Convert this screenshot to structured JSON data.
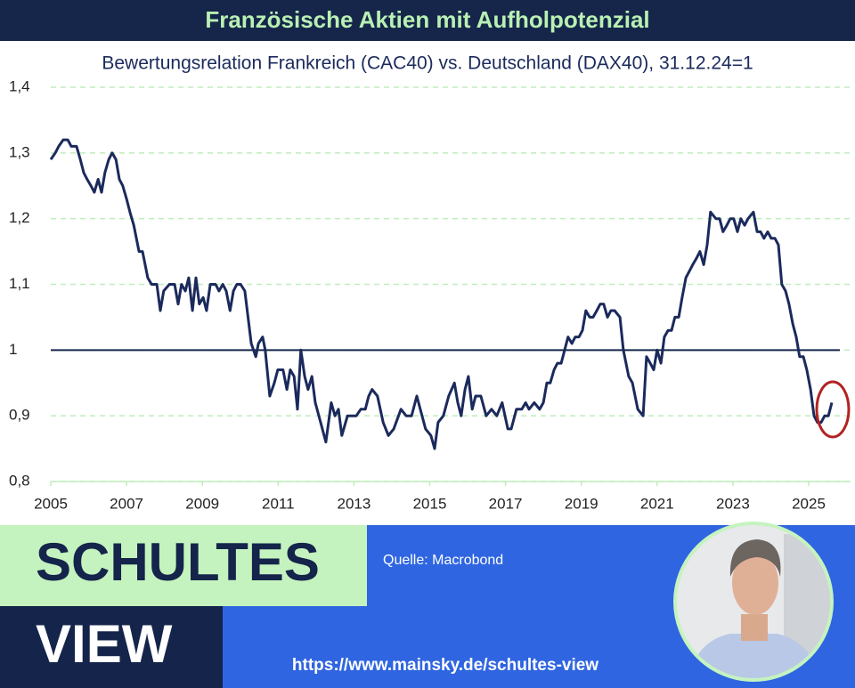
{
  "chart_data": {
    "type": "line",
    "title": "Französische Aktien mit Aufholpotenzial",
    "subtitle": "Bewertungsrelation Frankreich (CAC40) vs. Deutschland (DAX40), 31.12.24=1",
    "source": "Quelle: Macrobond",
    "x": [
      2005.0,
      2005.12,
      2005.21,
      2005.33,
      2005.45,
      2005.54,
      2005.68,
      2005.78,
      2005.87,
      2005.96,
      2006.06,
      2006.15,
      2006.25,
      2006.34,
      2006.43,
      2006.53,
      2006.62,
      2006.72,
      2006.81,
      2006.9,
      2007.0,
      2007.09,
      2007.19,
      2007.33,
      2007.42,
      2007.56,
      2007.66,
      2007.8,
      2007.89,
      2007.98,
      2008.13,
      2008.27,
      2008.36,
      2008.45,
      2008.55,
      2008.64,
      2008.74,
      2008.83,
      2008.92,
      2009.02,
      2009.11,
      2009.21,
      2009.35,
      2009.44,
      2009.54,
      2009.63,
      2009.73,
      2009.82,
      2009.91,
      2010.01,
      2010.12,
      2010.29,
      2010.41,
      2010.48,
      2010.59,
      2010.66,
      2010.78,
      2010.9,
      2010.99,
      2011.13,
      2011.23,
      2011.32,
      2011.42,
      2011.51,
      2011.6,
      2011.7,
      2011.79,
      2011.89,
      2011.98,
      2012.12,
      2012.26,
      2012.4,
      2012.5,
      2012.59,
      2012.68,
      2012.83,
      2012.94,
      2013.06,
      2013.18,
      2013.3,
      2013.39,
      2013.48,
      2013.62,
      2013.77,
      2013.91,
      2014.05,
      2014.24,
      2014.38,
      2014.52,
      2014.66,
      2014.75,
      2014.89,
      2015.03,
      2015.13,
      2015.22,
      2015.36,
      2015.5,
      2015.65,
      2015.74,
      2015.83,
      2015.93,
      2016.02,
      2016.12,
      2016.21,
      2016.35,
      2016.49,
      2016.63,
      2016.77,
      2016.91,
      2017.06,
      2017.15,
      2017.29,
      2017.43,
      2017.53,
      2017.62,
      2017.76,
      2017.9,
      2018.0,
      2018.09,
      2018.18,
      2018.28,
      2018.37,
      2018.47,
      2018.56,
      2018.65,
      2018.75,
      2018.84,
      2018.94,
      2019.03,
      2019.12,
      2019.22,
      2019.31,
      2019.41,
      2019.5,
      2019.59,
      2019.69,
      2019.78,
      2019.88,
      2020.02,
      2020.11,
      2020.25,
      2020.35,
      2020.49,
      2020.63,
      2020.72,
      2020.82,
      2020.91,
      2021.0,
      2021.1,
      2021.19,
      2021.29,
      2021.38,
      2021.47,
      2021.57,
      2021.66,
      2021.76,
      2021.85,
      2021.94,
      2022.04,
      2022.13,
      2022.23,
      2022.32,
      2022.41,
      2022.55,
      2022.65,
      2022.74,
      2022.84,
      2022.93,
      2023.02,
      2023.12,
      2023.21,
      2023.31,
      2023.4,
      2023.54,
      2023.64,
      2023.73,
      2023.82,
      2023.92,
      2024.01,
      2024.11,
      2024.2,
      2024.29,
      2024.39,
      2024.48,
      2024.58,
      2024.67,
      2024.76,
      2024.86,
      2024.95,
      2025.05,
      2025.14,
      2025.23,
      2025.33,
      2025.42,
      2025.52,
      2025.61
    ],
    "series": [
      {
        "color": "#1b2a5c",
        "values": [
          1.29,
          1.3,
          1.31,
          1.32,
          1.32,
          1.31,
          1.31,
          1.29,
          1.27,
          1.26,
          1.25,
          1.24,
          1.26,
          1.24,
          1.27,
          1.29,
          1.3,
          1.29,
          1.26,
          1.25,
          1.23,
          1.21,
          1.19,
          1.15,
          1.15,
          1.11,
          1.1,
          1.1,
          1.06,
          1.09,
          1.1,
          1.1,
          1.07,
          1.1,
          1.09,
          1.11,
          1.06,
          1.11,
          1.07,
          1.08,
          1.06,
          1.1,
          1.1,
          1.09,
          1.1,
          1.09,
          1.06,
          1.09,
          1.1,
          1.1,
          1.09,
          1.01,
          0.99,
          1.01,
          1.02,
          1.0,
          0.93,
          0.95,
          0.97,
          0.97,
          0.94,
          0.97,
          0.96,
          0.91,
          1.0,
          0.96,
          0.94,
          0.96,
          0.92,
          0.89,
          0.86,
          0.92,
          0.9,
          0.91,
          0.87,
          0.9,
          0.9,
          0.9,
          0.91,
          0.91,
          0.93,
          0.94,
          0.93,
          0.89,
          0.87,
          0.88,
          0.91,
          0.9,
          0.9,
          0.93,
          0.91,
          0.88,
          0.87,
          0.85,
          0.89,
          0.9,
          0.93,
          0.95,
          0.92,
          0.9,
          0.94,
          0.96,
          0.91,
          0.93,
          0.93,
          0.9,
          0.91,
          0.9,
          0.92,
          0.88,
          0.88,
          0.91,
          0.91,
          0.92,
          0.91,
          0.92,
          0.91,
          0.92,
          0.95,
          0.95,
          0.97,
          0.98,
          0.98,
          1.0,
          1.02,
          1.01,
          1.02,
          1.02,
          1.03,
          1.06,
          1.05,
          1.05,
          1.06,
          1.07,
          1.07,
          1.05,
          1.06,
          1.06,
          1.05,
          1.0,
          0.96,
          0.95,
          0.91,
          0.9,
          0.99,
          0.98,
          0.97,
          1.0,
          0.98,
          1.02,
          1.03,
          1.03,
          1.05,
          1.05,
          1.08,
          1.11,
          1.12,
          1.13,
          1.14,
          1.15,
          1.13,
          1.16,
          1.21,
          1.2,
          1.2,
          1.18,
          1.19,
          1.2,
          1.2,
          1.18,
          1.2,
          1.19,
          1.2,
          1.21,
          1.18,
          1.18,
          1.17,
          1.18,
          1.17,
          1.17,
          1.16,
          1.1,
          1.09,
          1.07,
          1.04,
          1.02,
          0.99,
          0.99,
          0.97,
          0.94,
          0.9,
          0.89,
          0.89,
          0.9,
          0.9,
          0.92
        ]
      }
    ],
    "reference_line": 1,
    "xlim": [
      2005,
      2026
    ],
    "ylim": [
      0.8,
      1.4
    ],
    "xticks": [
      2005,
      2007,
      2009,
      2011,
      2013,
      2015,
      2017,
      2019,
      2021,
      2023,
      2025
    ],
    "yticks": [
      {
        "value": 0.8,
        "label": "0,8"
      },
      {
        "value": 0.9,
        "label": "0,9"
      },
      1,
      {
        "value": 1.1,
        "label": "1,1"
      },
      {
        "value": 1.2,
        "label": "1,2"
      },
      {
        "value": 1.3,
        "label": "1,3"
      },
      {
        "value": 1.4,
        "label": "1,4"
      }
    ],
    "grid": true
  },
  "footer": {
    "brand_top": "SCHULTES",
    "brand_bottom": "VIEW",
    "url": "https://www.mainsky.de/schultes-view"
  }
}
